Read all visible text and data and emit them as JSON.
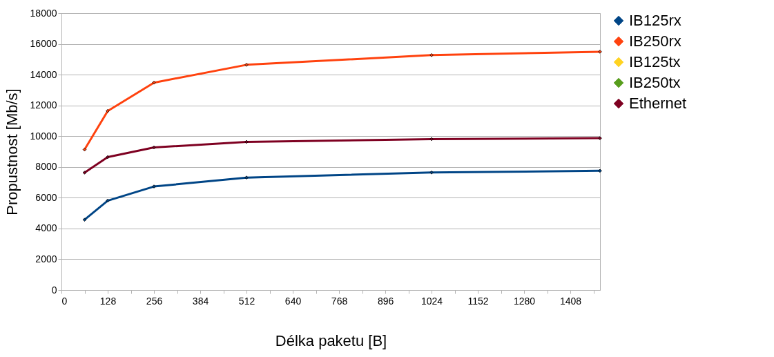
{
  "chart_data": {
    "type": "line",
    "xlabel": "Délka paketu [B]",
    "ylabel": "Propustnost [Mb/s]",
    "x": [
      64,
      128,
      256,
      512,
      1024,
      1490
    ],
    "series": [
      {
        "name": "IB125rx",
        "color": "#004586",
        "values": [
          4570,
          5810,
          6730,
          7310,
          7640,
          7750
        ]
      },
      {
        "name": "IB250rx",
        "color": "#ff420e",
        "values": [
          9130,
          11640,
          13480,
          14640,
          15270,
          15490
        ]
      },
      {
        "name": "IB125tx",
        "color": "#ffd320",
        "values": [
          null,
          null,
          null,
          null,
          null,
          null
        ]
      },
      {
        "name": "IB250tx",
        "color": "#579d1c",
        "values": [
          null,
          null,
          null,
          null,
          null,
          null
        ]
      },
      {
        "name": "Ethernet",
        "color": "#7e0021",
        "values": [
          7630,
          8640,
          9270,
          9630,
          9810,
          9870
        ]
      }
    ],
    "xlim": [
      0,
      1490
    ],
    "xticks": [
      0,
      {
        "value": 64,
        "label": null
      },
      128,
      {
        "value": 192,
        "label": null
      },
      256,
      {
        "value": 320,
        "label": null
      },
      384,
      {
        "value": 448,
        "label": null
      },
      512,
      {
        "value": 576,
        "label": null
      },
      640,
      {
        "value": 704,
        "label": null
      },
      768,
      {
        "value": 832,
        "label": null
      },
      896,
      {
        "value": 960,
        "label": null
      },
      1024,
      {
        "value": 1088,
        "label": null
      },
      1152,
      {
        "value": 1216,
        "label": null
      },
      1280,
      {
        "value": 1344,
        "label": null
      },
      1408,
      {
        "value": 1472,
        "label": null
      }
    ],
    "ylim": [
      0,
      18000
    ],
    "yticks": [
      0,
      2000,
      4000,
      6000,
      8000,
      10000,
      12000,
      14000,
      16000,
      18000
    ],
    "grid": "y",
    "legend": "right",
    "marker": "diamond",
    "line_style": "solid"
  }
}
